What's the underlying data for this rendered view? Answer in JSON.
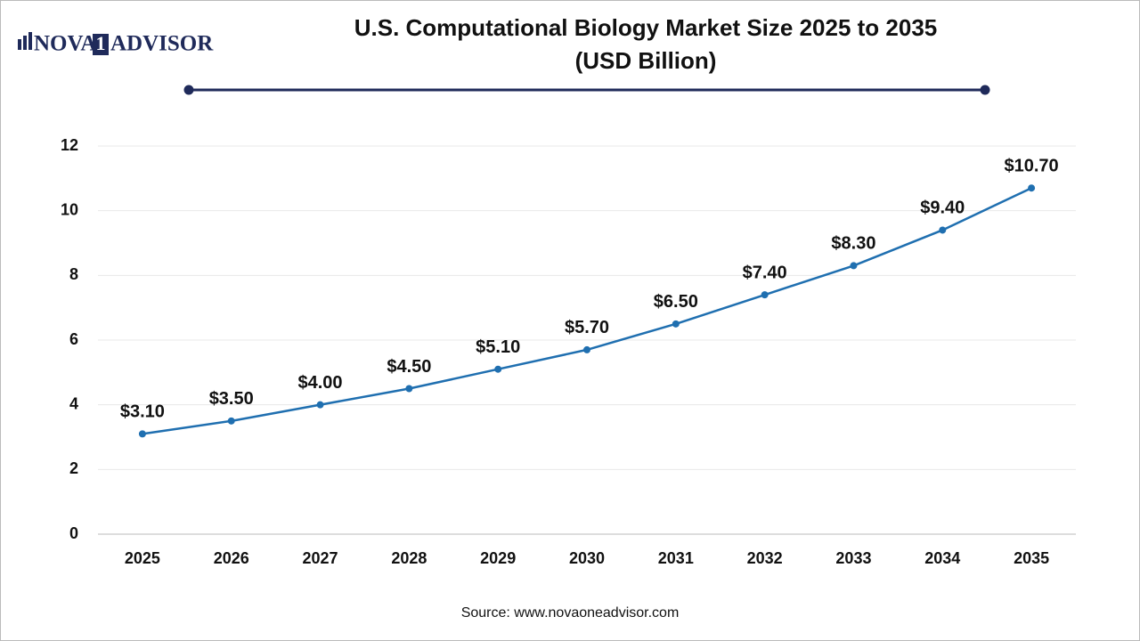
{
  "chart_data": {
    "type": "line",
    "title": "U.S. Computational Biology Market Size 2025 to 2035",
    "subtitle": "(USD Billion)",
    "logo": [
      "NOVA",
      "1",
      "ADVISOR"
    ],
    "source": "Source: www.novaoneadvisor.com",
    "categories": [
      "2025",
      "2026",
      "2027",
      "2028",
      "2029",
      "2030",
      "2031",
      "2032",
      "2033",
      "2034",
      "2035"
    ],
    "values": [
      3.1,
      3.5,
      4.0,
      4.5,
      5.1,
      5.7,
      6.5,
      7.4,
      8.3,
      9.4,
      10.7
    ],
    "value_labels": [
      "$3.10",
      "$3.50",
      "$4.00",
      "$4.50",
      "$5.10",
      "$5.70",
      "$6.50",
      "$7.40",
      "$8.30",
      "$9.40",
      "$10.70"
    ],
    "color": "#1f6fb0",
    "ylim": [
      0,
      12
    ],
    "yticks": [
      0,
      2,
      4,
      6,
      8,
      10,
      12
    ],
    "grid": true
  }
}
